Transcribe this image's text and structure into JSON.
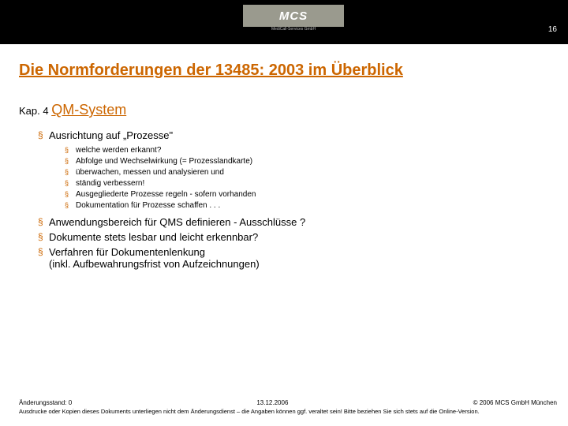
{
  "header": {
    "logo_text": "MCS",
    "logo_subtext": "MediCall-Services GmbH",
    "slide_number": "16"
  },
  "title": "Die Normforderungen der 13485: 2003 im Überblick",
  "chapter": {
    "prefix": "Kap. 4 ",
    "heading": "QM-System"
  },
  "bullets": [
    {
      "text": "Ausrichtung auf „Prozesse\"",
      "sub": [
        "welche werden erkannt?",
        "Abfolge und Wechselwirkung (= Prozesslandkarte)",
        "überwachen, messen und analysieren und",
        "ständig verbessern!",
        "Ausgegliederte Prozesse regeln - sofern vorhanden",
        "Dokumentation für Prozesse schaffen . . ."
      ]
    },
    {
      "text": "Anwendungsbereich für QMS definieren - Ausschlüsse ?"
    },
    {
      "text": "Dokumente stets lesbar und leicht erkennbar?"
    },
    {
      "text": "Verfahren für Dokumentenlenkung\n(inkl. Aufbewahrungsfrist von Aufzeichnungen)"
    }
  ],
  "footer": {
    "left": "Änderungsstand: 0",
    "center": "13.12.2006",
    "right": "© 2006 MCS GmbH München",
    "note": "Ausdrucke oder Kopien dieses Dokuments unterliegen nicht dem Änderungsdienst – die Angaben können ggf. veraltet sein! Bitte beziehen Sie sich stets auf die Online-Version."
  },
  "colors": {
    "accent": "#cc6600",
    "topbar_bg": "#000000",
    "logo_bg": "#9a9a8e",
    "text": "#000000",
    "bg": "#ffffff"
  }
}
